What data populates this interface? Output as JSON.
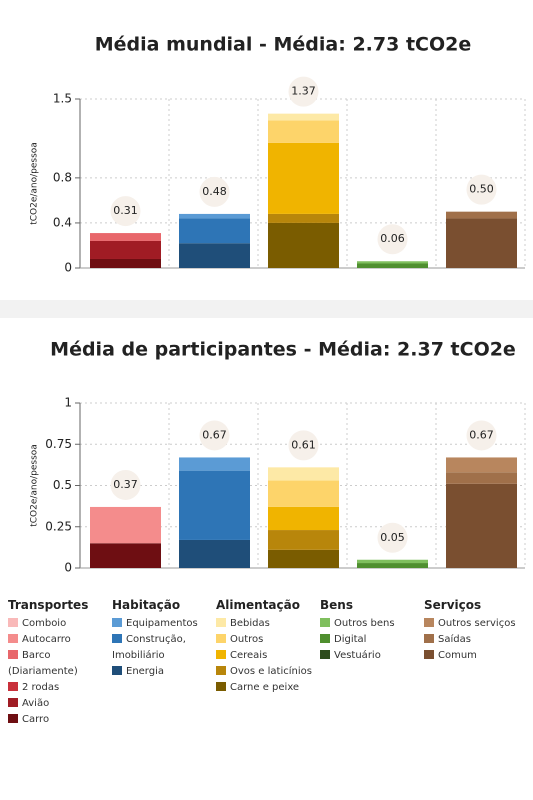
{
  "chart_data": [
    {
      "type": "stacked-bar",
      "title": "Média mundial - Média: 2.73 tCO2e",
      "ylabel": "tCO2e/ano/pessoa",
      "ylim": [
        0,
        1.5
      ],
      "yticks": [
        0,
        0.4,
        0.8,
        1.5
      ],
      "grid": true,
      "segments": [
        [
          null,
          null,
          0.07,
          null,
          0.16,
          0.08
        ],
        [
          0.04,
          0.22,
          0.22
        ],
        [
          0.06,
          0.2,
          0.63,
          0.08,
          0.4
        ],
        [
          0.02,
          0.04,
          null
        ],
        [
          null,
          0.06,
          0.44
        ]
      ],
      "totals": [
        0.31,
        0.48,
        1.37,
        0.06,
        0.5
      ],
      "total_labels": [
        "0.31",
        "0.48",
        "1.37",
        "0.06",
        "0.50"
      ]
    },
    {
      "type": "stacked-bar",
      "title": "Média de participantes - Média: 2.37 tCO2e",
      "ylabel": "tCO2e/ano/pessoa",
      "ylim": [
        0,
        1
      ],
      "yticks": [
        0,
        0.25,
        0.5,
        0.75,
        1
      ],
      "grid": true,
      "segments": [
        [
          null,
          0.22,
          null,
          null,
          null,
          0.15
        ],
        [
          0.08,
          0.42,
          0.17
        ],
        [
          0.08,
          0.16,
          0.14,
          0.12,
          0.11
        ],
        [
          0.02,
          0.03,
          null
        ],
        [
          0.09,
          0.07,
          0.51
        ]
      ],
      "totals": [
        0.37,
        0.67,
        0.61,
        0.05,
        0.67
      ],
      "total_labels": [
        "0.37",
        "0.67",
        "0.61",
        "0.05",
        "0.67"
      ]
    }
  ],
  "legend": [
    {
      "title": "Transportes",
      "items": [
        {
          "name": "Comboio",
          "color": "#f9b9b9"
        },
        {
          "name": "Autocarro",
          "color": "#f48c8c"
        },
        {
          "name": "Barco (Diariamente)",
          "color": "#e8676b"
        },
        {
          "name": "2 rodas",
          "color": "#c9303a"
        },
        {
          "name": "Avião",
          "color": "#a01c24"
        },
        {
          "name": "Carro",
          "color": "#6e0e12"
        }
      ]
    },
    {
      "title": "Habitação",
      "items": [
        {
          "name": "Equipamentos",
          "color": "#5b9bd5"
        },
        {
          "name": "Construção, Imobiliário",
          "color": "#2e75b6"
        },
        {
          "name": "Energia",
          "color": "#1f4e79"
        }
      ]
    },
    {
      "title": "Alimentação",
      "items": [
        {
          "name": "Bebidas",
          "color": "#fde9a6"
        },
        {
          "name": "Outros",
          "color": "#fdd46a"
        },
        {
          "name": "Cereais",
          "color": "#f0b400"
        },
        {
          "name": "Ovos e laticínios",
          "color": "#b8860b"
        },
        {
          "name": "Carne e peixe",
          "color": "#7a5c00"
        }
      ]
    },
    {
      "title": "Bens",
      "items": [
        {
          "name": "Outros bens",
          "color": "#7fbf5e"
        },
        {
          "name": "Digital",
          "color": "#4f8f2f"
        },
        {
          "name": "Vestuário",
          "color": "#2e4d1c"
        }
      ]
    },
    {
      "title": "Serviços",
      "items": [
        {
          "name": "Outros serviços",
          "color": "#b8865e"
        },
        {
          "name": "Saídas",
          "color": "#a0704a"
        },
        {
          "name": "Comum",
          "color": "#7a4f30"
        }
      ]
    }
  ]
}
